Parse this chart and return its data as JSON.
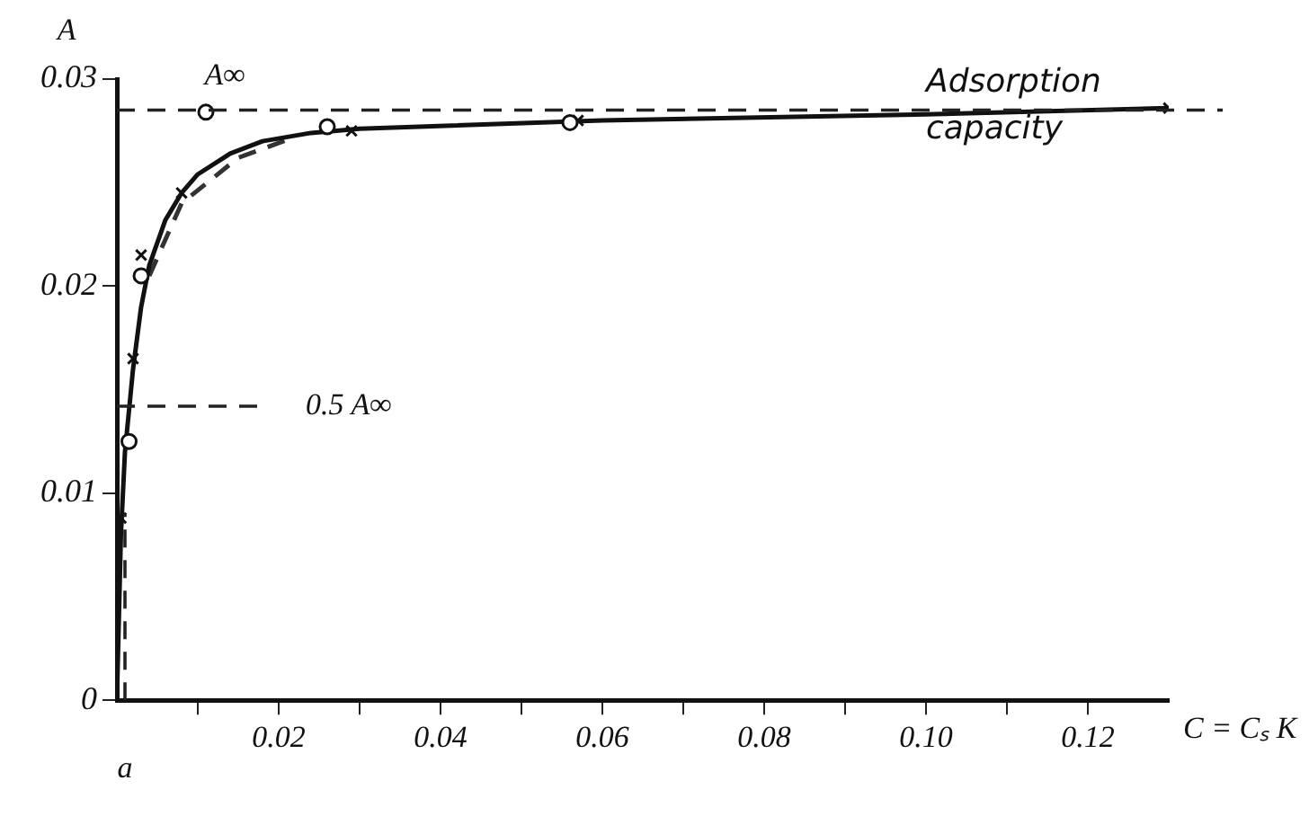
{
  "chart_data": {
    "type": "line",
    "ylabel": "A",
    "xlabel": "C = Cₛ K",
    "xlim": [
      0,
      0.13
    ],
    "ylim": [
      0,
      0.03
    ],
    "xticks": [
      {
        "value": 0.01,
        "label": null
      },
      0.02,
      {
        "value": 0.03,
        "label": null
      },
      0.04,
      {
        "value": 0.05,
        "label": null
      },
      0.06,
      {
        "value": 0.07,
        "label": null
      },
      0.08,
      {
        "value": 0.09,
        "label": null
      },
      {
        "value": 0.1,
        "label": "0.10"
      },
      {
        "value": 0.11,
        "label": null
      },
      0.12
    ],
    "yticks": [
      0,
      0.01,
      0.02,
      0.03
    ],
    "grid": false,
    "legend": false,
    "series": [
      {
        "color": "#111111",
        "line_style": "solid",
        "marker": "none",
        "x": [
          0,
          0.0005,
          0.001,
          0.002,
          0.003,
          0.004,
          0.006,
          0.008,
          0.01,
          0.014,
          0.018,
          0.024,
          0.03,
          0.06,
          0.1,
          0.13
        ],
        "values": [
          0,
          0.008,
          0.012,
          0.016,
          0.019,
          0.021,
          0.0232,
          0.0245,
          0.0254,
          0.0264,
          0.027,
          0.0274,
          0.0276,
          0.028,
          0.0283,
          0.0286
        ]
      },
      {
        "type": "line",
        "color": "#333333",
        "line_style": "dashed",
        "marker": "none",
        "x": [
          0.004,
          0.008,
          0.015,
          0.022
        ],
        "values": [
          0.0205,
          0.024,
          0.0262,
          0.0272
        ]
      },
      {
        "type": "scatter",
        "color": "#111111",
        "marker": "circle",
        "x": [
          0.0015,
          0.003,
          0.011,
          0.026,
          0.056
        ],
        "values": [
          0.0125,
          0.0205,
          0.0284,
          0.0277,
          0.0279
        ]
      },
      {
        "type": "scatter",
        "color": "#111111",
        "marker": "cross",
        "x": [
          0.0005,
          0.002,
          0.003,
          0.008,
          0.029,
          0.057,
          0.13
        ],
        "values": [
          0.0088,
          0.0165,
          0.0215,
          0.0245,
          0.0275,
          0.028,
          0.0286
        ]
      }
    ],
    "ref_lines": [
      {
        "axis": "y",
        "value": 0.0285,
        "label": "A∞",
        "line_style": "dashed"
      },
      {
        "axis": "y",
        "value": 0.0142,
        "label": "0.5 A∞",
        "line_style": "dashed"
      },
      {
        "axis": "x",
        "value": 0.001,
        "label": "a",
        "line_style": "dashed"
      }
    ],
    "annotations": [
      {
        "text": "Adsorption capacity",
        "x": 0.1,
        "y": 0.0285
      }
    ]
  }
}
